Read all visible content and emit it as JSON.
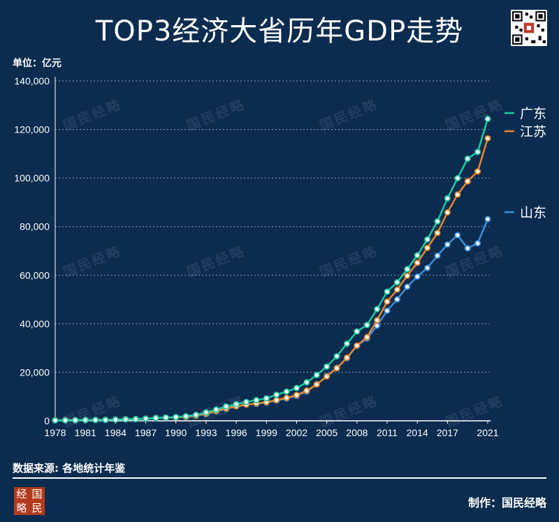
{
  "header": {
    "title": "TOP3经济大省历年GDP走势",
    "unit_label": "单位：亿元"
  },
  "footer": {
    "source": "数据来源: 各地统计年鉴",
    "maker": "制作：国民经略",
    "logo_chars": [
      "经",
      "国",
      "略",
      "民"
    ]
  },
  "watermark_text": "国民经略",
  "colors": {
    "background": "#0b2c4f",
    "guangdong": "#1fcaa0",
    "jiangsu": "#e8862b",
    "shandong": "#3a8fdc",
    "grid": "#b9c5d3"
  },
  "chart_data": {
    "type": "line",
    "title": "TOP3经济大省历年GDP走势",
    "ylabel": "单位：亿元",
    "ylim": [
      0,
      140000
    ],
    "yticks": [
      0,
      20000,
      40000,
      60000,
      80000,
      100000,
      120000,
      140000
    ],
    "ytick_labels": [
      "0",
      "20,000",
      "40,000",
      "60,000",
      "80,000",
      "100,000",
      "120,000",
      "140,000"
    ],
    "xlim": [
      1978,
      2021
    ],
    "xticks": [
      1978,
      1981,
      1984,
      1987,
      1990,
      1993,
      1996,
      1999,
      2002,
      2005,
      2008,
      2011,
      2014,
      2017,
      2021
    ],
    "xtick_labels": [
      "1978",
      "1981",
      "1984",
      "1987",
      "1990",
      "1993",
      "1996",
      "1999",
      "2002",
      "2005",
      "2008",
      "2011",
      "2014",
      "2017",
      "2021"
    ],
    "x": [
      1978,
      1979,
      1980,
      1981,
      1982,
      1983,
      1984,
      1985,
      1986,
      1987,
      1988,
      1989,
      1990,
      1991,
      1992,
      1993,
      1994,
      1995,
      1996,
      1997,
      1998,
      1999,
      2000,
      2001,
      2002,
      2003,
      2004,
      2005,
      2006,
      2007,
      2008,
      2009,
      2010,
      2011,
      2012,
      2013,
      2014,
      2015,
      2016,
      2017,
      2018,
      2019,
      2020,
      2021
    ],
    "series": [
      {
        "name": "广东",
        "color": "#1fcaa0",
        "values": [
          186,
          209,
          250,
          291,
          340,
          368,
          459,
          578,
          668,
          846,
          1155,
          1381,
          1559,
          1893,
          2448,
          3469,
          4619,
          5934,
          6835,
          7775,
          8531,
          9250,
          10741,
          12039,
          13502,
          15845,
          18865,
          22367,
          26588,
          31777,
          36797,
          39483,
          46013,
          53210,
          57068,
          62475,
          68173,
          74732,
          82163,
          91649,
          99945,
          107987,
          110761,
          124370
        ]
      },
      {
        "name": "江苏",
        "color": "#e8862b",
        "values": [
          249,
          298,
          319,
          350,
          390,
          438,
          518,
          652,
          744,
          922,
          1208,
          1322,
          1417,
          1601,
          2136,
          2998,
          4057,
          5155,
          6004,
          6680,
          7200,
          7698,
          8554,
          9457,
          10632,
          12443,
          15004,
          18306,
          21645,
          26018,
          30982,
          34457,
          41425,
          49110,
          54058,
          59753,
          65088,
          71256,
          77388,
          85870,
          93208,
          98657,
          102719,
          116364
        ]
      },
      {
        "name": "山东",
        "color": "#3a8fdc",
        "values": [
          225,
          251,
          292,
          346,
          395,
          459,
          582,
          681,
          742,
          893,
          1118,
          1293,
          1511,
          1810,
          2196,
          2770,
          3845,
          4953,
          5960,
          6650,
          7021,
          7493,
          8337,
          9195,
          10275,
          12078,
          15021,
          18366,
          21900,
          25776,
          30933,
          33896,
          39170,
          45362,
          50013,
          55230,
          59427,
          63002,
          68024,
          72634,
          76470,
          71067,
          73129,
          83096
        ]
      }
    ],
    "legend": [
      {
        "label": "广东",
        "position": "right"
      },
      {
        "label": "江苏",
        "position": "right"
      },
      {
        "label": "山东",
        "position": "right"
      }
    ],
    "grid": true
  }
}
